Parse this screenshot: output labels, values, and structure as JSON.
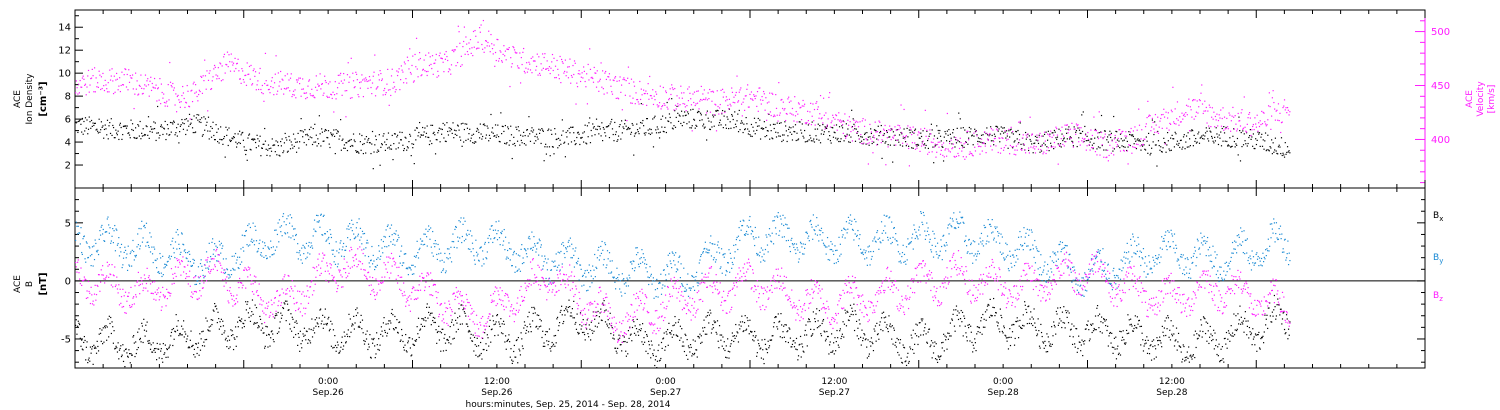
{
  "colors": {
    "black": "#000000",
    "magenta": "#ff1aff",
    "blue": "#1a8ad4",
    "axis": "#000000"
  },
  "chart_data": [
    {
      "type": "scatter",
      "panel": "top",
      "ylabel_left": [
        "ACE",
        "Ion Density",
        "[cm⁻³]"
      ],
      "ylabel_right": [
        "ACE",
        "Velocity",
        "[km/s]"
      ],
      "ylim_left": [
        0,
        15.5
      ],
      "ylim_right": [
        355,
        520
      ],
      "yticks_left": [
        "2",
        "4",
        "6",
        "8",
        "10",
        "12",
        "14"
      ],
      "yticks_right": [
        "400",
        "450",
        "500"
      ],
      "right_axis_color": "#ff1aff",
      "grid": false,
      "series": [
        {
          "color": "#000000",
          "axis": "left",
          "knots_t": [
            0,
            0.1,
            0.25,
            0.35,
            0.5,
            0.6,
            0.7,
            0.8,
            0.85,
            0.95,
            1.1,
            1.3,
            1.45,
            1.55,
            1.7,
            1.8,
            1.95,
            2.05,
            2.2,
            2.4,
            2.55,
            2.7,
            2.85,
            2.95,
            3.05,
            3.2,
            3.4,
            3.5,
            3.6
          ],
          "knots_v": [
            5.5,
            5.2,
            5.0,
            5.7,
            4.0,
            3.5,
            4.5,
            4.2,
            3.9,
            4.0,
            5.0,
            4.6,
            4.4,
            4.8,
            5.3,
            6.1,
            5.9,
            5.0,
            4.9,
            4.6,
            4.2,
            4.7,
            3.9,
            4.6,
            4.2,
            3.9,
            4.6,
            4.2,
            3.4
          ]
        },
        {
          "color": "#ff1aff",
          "axis": "right",
          "knots_t": [
            0,
            0.05,
            0.15,
            0.25,
            0.3,
            0.35,
            0.45,
            0.55,
            0.65,
            0.8,
            0.95,
            1.0,
            1.1,
            1.2,
            1.3,
            1.4,
            1.55,
            1.65,
            1.75,
            1.9,
            2.0,
            2.1,
            2.2,
            2.3,
            2.5,
            2.6,
            2.75,
            2.85,
            2.95,
            3.0,
            3.05,
            3.15,
            3.2,
            3.3,
            3.4,
            3.5,
            3.6
          ],
          "knots_v": [
            450,
            455,
            455,
            445,
            440,
            442,
            470,
            455,
            450,
            450,
            455,
            470,
            470,
            495,
            475,
            470,
            455,
            445,
            440,
            435,
            440,
            430,
            425,
            410,
            400,
            395,
            400,
            395,
            405,
            400,
            395,
            405,
            415,
            430,
            420,
            415,
            430
          ]
        }
      ]
    },
    {
      "type": "scatter",
      "panel": "bottom",
      "ylabel_left": [
        "ACE",
        "B",
        "[nT]"
      ],
      "ylim": [
        -7.5,
        8.0
      ],
      "yticks_left": [
        "-5",
        "0",
        "5"
      ],
      "zero_line": true,
      "grid": false,
      "legend_position": "right",
      "series": [
        {
          "name": "Bx",
          "label_main": "B",
          "label_sub": "x",
          "color": "#000000",
          "knots_t": [
            0,
            0.2,
            0.5,
            0.7,
            0.9,
            1.1,
            1.3,
            1.5,
            1.7,
            1.9,
            2.1,
            2.3,
            2.5,
            2.7,
            2.9,
            3.1,
            3.3,
            3.5,
            3.6
          ],
          "knots_v": [
            -5.0,
            -5.5,
            -3.5,
            -4.0,
            -4.5,
            -4.0,
            -5.0,
            -3.0,
            -5.5,
            -4.5,
            -5.0,
            -4.0,
            -5.5,
            -3.5,
            -4.0,
            -4.5,
            -5.5,
            -4.0,
            -3.0
          ]
        },
        {
          "name": "By",
          "label_main": "B",
          "label_sub": "y",
          "color": "#1a8ad4",
          "knots_t": [
            0,
            0.2,
            0.4,
            0.6,
            0.8,
            1.0,
            1.2,
            1.4,
            1.6,
            1.8,
            2.0,
            2.2,
            2.4,
            2.6,
            2.8,
            3.0,
            3.2,
            3.4,
            3.6
          ],
          "knots_v": [
            3.5,
            3.0,
            1.5,
            4.0,
            3.5,
            2.5,
            3.5,
            2.0,
            1.0,
            0.5,
            4.0,
            3.5,
            3.5,
            4.0,
            3.0,
            0.5,
            2.5,
            2.0,
            3.5
          ]
        },
        {
          "name": "Bz",
          "label_main": "B",
          "label_sub": "z",
          "color": "#ff1aff",
          "knots_t": [
            0,
            0.2,
            0.4,
            0.6,
            0.8,
            1.0,
            1.2,
            1.4,
            1.6,
            1.8,
            2.0,
            2.2,
            2.4,
            2.6,
            2.8,
            3.0,
            3.2,
            3.4,
            3.6
          ],
          "knots_v": [
            0.5,
            -1.0,
            1.0,
            -2.0,
            1.5,
            -0.5,
            -3.0,
            0.5,
            -3.5,
            -1.5,
            0.0,
            -2.0,
            -1.0,
            0.5,
            -0.5,
            1.0,
            -1.5,
            -0.5,
            -2.5
          ]
        }
      ]
    }
  ],
  "x_axis": {
    "label": "hours:minutes, Sep. 25, 2014 - Sep. 28, 2014",
    "xlim_days": [
      0,
      4
    ],
    "data_end_day": 3.6,
    "ticks": [
      {
        "day": 0.75,
        "time": "0:00",
        "date": "Sep.26"
      },
      {
        "day": 1.25,
        "time": "12:00",
        "date": "Sep.26"
      },
      {
        "day": 1.75,
        "time": "0:00",
        "date": "Sep.27"
      },
      {
        "day": 2.25,
        "time": "12:00",
        "date": "Sep.27"
      },
      {
        "day": 2.75,
        "time": "0:00",
        "date": "Sep.28"
      },
      {
        "day": 3.25,
        "time": "12:00",
        "date": "Sep.28"
      }
    ]
  }
}
